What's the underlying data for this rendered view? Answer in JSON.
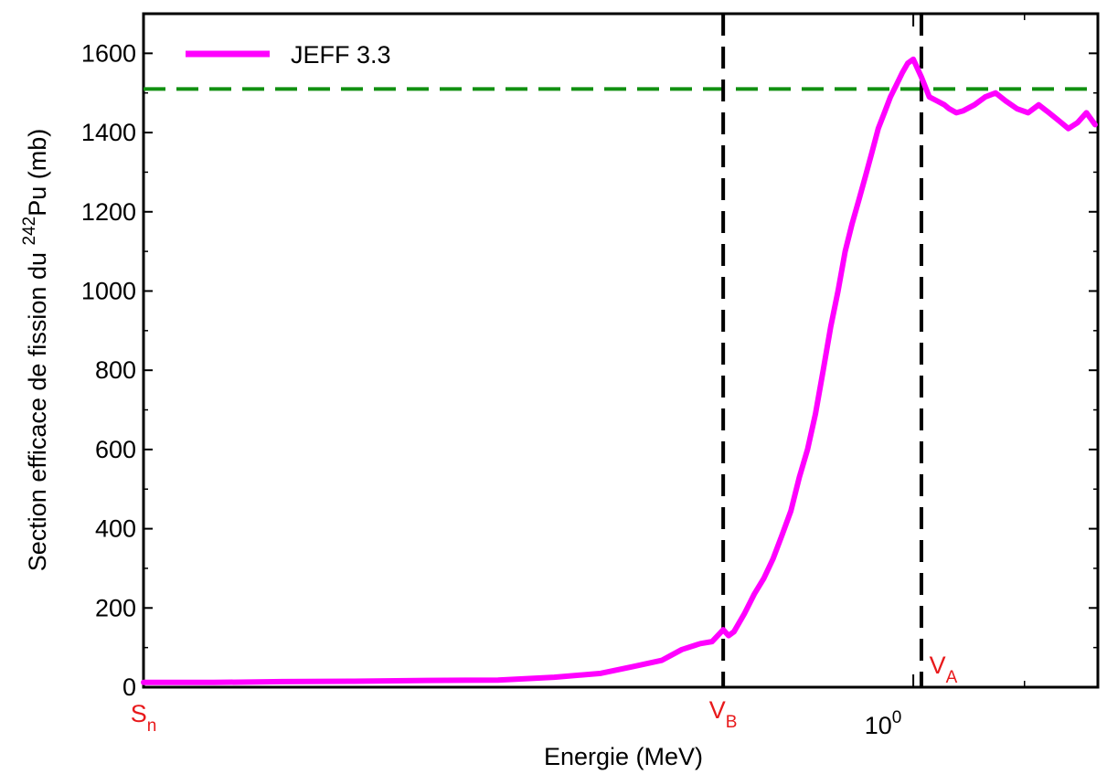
{
  "chart_data": {
    "type": "line",
    "xlabel": "Energie (MeV)",
    "ylabel": {
      "pre": "Section efficace de fission du ",
      "sup": "242",
      "post": "Pu (mb)"
    },
    "x_scale": "log",
    "x_tick_label": {
      "base": "10",
      "exp": "0",
      "value": 1.0
    },
    "ylim": [
      0,
      1700
    ],
    "yticks": [
      0,
      200,
      400,
      600,
      800,
      1000,
      1200,
      1400,
      1600
    ],
    "grid": false,
    "legend": {
      "position": "top-left",
      "entries": [
        "JEFF 3.3"
      ]
    },
    "markers": [
      {
        "id": "Sn",
        "main": "S",
        "sub": "n",
        "color": "#e8191b"
      },
      {
        "id": "VB",
        "main": "V",
        "sub": "B",
        "color": "#e8191b"
      },
      {
        "id": "VA",
        "main": "V",
        "sub": "A",
        "color": "#e8191b"
      }
    ],
    "reference_line": {
      "value": 1510,
      "color": "#119011",
      "style": "dashed"
    },
    "series": [
      {
        "name": "JEFF 3.3",
        "color": "#ff00ff",
        "x": [
          0.0604,
          0.078,
          0.1,
          0.13,
          0.17,
          0.22,
          0.27,
          0.32,
          0.36,
          0.4,
          0.43,
          0.46,
          0.48,
          0.5,
          0.51,
          0.52,
          0.54,
          0.56,
          0.58,
          0.6,
          0.62,
          0.64,
          0.66,
          0.68,
          0.7,
          0.72,
          0.74,
          0.76,
          0.78,
          0.8,
          0.82,
          0.84,
          0.86,
          0.88,
          0.9,
          0.92,
          0.94,
          0.96,
          0.98,
          1.0,
          1.03,
          1.06,
          1.09,
          1.12,
          1.14,
          1.17,
          1.2,
          1.25,
          1.3,
          1.35,
          1.4,
          1.46,
          1.52,
          1.58,
          1.64,
          1.7,
          1.76,
          1.82,
          1.88,
          1.94
        ],
        "y": [
          12,
          12,
          14,
          15,
          17,
          18,
          25,
          35,
          52,
          68,
          95,
          110,
          115,
          145,
          130,
          140,
          185,
          235,
          275,
          325,
          385,
          445,
          530,
          600,
          690,
          800,
          910,
          1000,
          1100,
          1170,
          1230,
          1290,
          1350,
          1410,
          1450,
          1490,
          1520,
          1550,
          1575,
          1585,
          1540,
          1490,
          1480,
          1470,
          1460,
          1450,
          1455,
          1470,
          1490,
          1500,
          1480,
          1460,
          1450,
          1470,
          1450,
          1430,
          1410,
          1425,
          1450,
          1420
        ]
      }
    ]
  }
}
